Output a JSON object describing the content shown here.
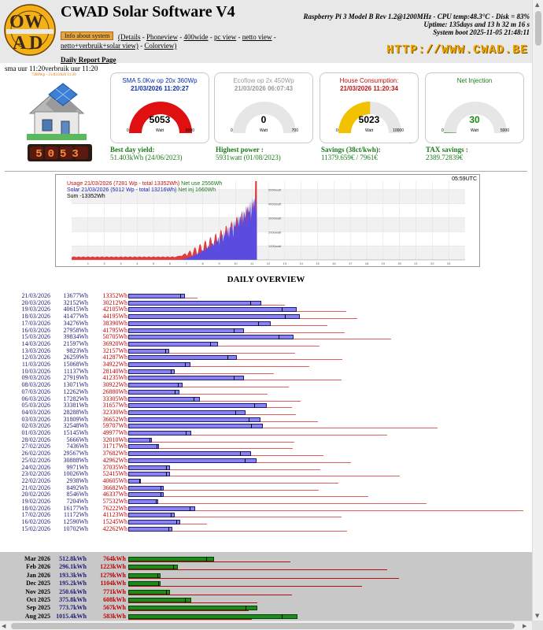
{
  "header": {
    "app_title": "CWAD Solar Software V4",
    "info_button": "Info about system",
    "links_row1": [
      "(Details",
      "Phoneview",
      "400wide",
      "pc view",
      "netto view",
      "-"
    ],
    "links_row2": [
      "netto+verbruik+solar view)",
      "Colorview)"
    ],
    "daily_report": "Daily Report Page",
    "system_lines": [
      "Raspberry Pi 3 Model B Rev 1.2@1200MHz - CPU temp:48.3°C - Disk = 83%",
      "Uptime: 135days and 13 h 32 m 16 s",
      "System boot 2025-11-05 21:48:11"
    ],
    "site_url": "HTTP://WWW.CWAD.BE",
    "sma_line": "sma uur 11:20verbruik uur 11:20",
    "house_caption": "7280Wp - 21/03/2026 11:20",
    "house_digits": "5053"
  },
  "gauges": [
    {
      "title": "SMA 5.0Kw op 20x 360Wp",
      "date": "21/03/2026 11:20:27",
      "value": "5053",
      "min": "0",
      "max": "5000",
      "unit": "Watt",
      "value_num": 5053,
      "max_num": 5000,
      "color": "#e01010",
      "title_color": "#0b2fb0",
      "date_color": "#0b2fb0",
      "value_color": "#000000"
    },
    {
      "title": "Ecoflow op 2x 450Wp",
      "date": "21/03/2026 06:07:43",
      "value": "0",
      "min": "0",
      "max": "700",
      "unit": "Watt",
      "value_num": 0,
      "max_num": 700,
      "color": "#999999",
      "title_color": "#9a9a9a",
      "date_color": "#9a9a9a",
      "value_color": "#000000"
    },
    {
      "title": "House Consumption:",
      "date": "21/03/2026 11:20:34",
      "value": "5023",
      "min": "0",
      "max": "10000",
      "unit": "Watt",
      "value_num": 5023,
      "max_num": 10000,
      "color": "#f2c200",
      "title_color": "#c01010",
      "date_color": "#c01010",
      "value_color": "#000000"
    },
    {
      "title": "Net Injection",
      "date": "",
      "value": "30",
      "min": "0",
      "max": "5000",
      "unit": "Watt",
      "value_num": 30,
      "max_num": 5000,
      "color": "#1e9e1e",
      "title_color": "#1a7a1a",
      "date_color": "#1a7a1a",
      "value_color": "#1a8a1a"
    }
  ],
  "stats": [
    {
      "label": "Best day yield:",
      "value": "51.403kWh (24/06/2023)"
    },
    {
      "label": "Highest power :",
      "value": "5931watt (01/08/2023)"
    },
    {
      "label": "Savings (38ct/kwh):",
      "value": "11379.659€ / 7961€"
    },
    {
      "label": "TAX savings :",
      "value": "2389.72839€"
    }
  ],
  "power_chart": {
    "time": "05:59UTC",
    "legend_usage": "Usage 21/03/2026 (7281 Wp - total 13352Wh)",
    "legend_netuse": "Net use 2556Wh",
    "legend_solar": "Solar 21/03/2026 (5012 Wp - total 13216Wh)",
    "legend_netinj": "Net inj 1660Wh",
    "legend_sum": "Sum -13352Wh",
    "y_labels": [
      "5000watt",
      "4000watt",
      "3000watt",
      "2000watt",
      "1000watt"
    ],
    "x_labels": [
      "1",
      "2",
      "3",
      "4",
      "5",
      "6",
      "7",
      "8",
      "9",
      "10",
      "11",
      "12",
      "13",
      "14",
      "15",
      "16",
      "17",
      "18",
      "19",
      "20",
      "21",
      "22",
      "23"
    ],
    "colors": {
      "usage": "#e23b3b",
      "solar": "#5b4ce0",
      "overlap": "#7a2eb0"
    }
  },
  "daily": {
    "title": "DAILY OVERVIEW",
    "max_wh": 79000,
    "rows": [
      {
        "date": "21/03/2026",
        "prod": "13677Wh",
        "use": "13352Wh"
      },
      {
        "date": "20/03/2026",
        "prod": "32152Wh",
        "use": "30212Wh"
      },
      {
        "date": "19/03/2026",
        "prod": "40615Wh",
        "use": "42105Wh"
      },
      {
        "date": "18/03/2026",
        "prod": "41477Wh",
        "use": "44195Wh"
      },
      {
        "date": "17/03/2026",
        "prod": "34276Wh",
        "use": "38390Wh"
      },
      {
        "date": "16/03/2026",
        "prod": "27958Wh",
        "use": "41795Wh"
      },
      {
        "date": "15/03/2026",
        "prod": "39834Wh",
        "use": "50705Wh"
      },
      {
        "date": "14/03/2026",
        "prod": "21597Wh",
        "use": "36920Wh"
      },
      {
        "date": "13/03/2026",
        "prod": "9823Wh",
        "use": "32157Wh"
      },
      {
        "date": "12/03/2026",
        "prod": "26259Wh",
        "use": "41287Wh"
      },
      {
        "date": "11/03/2026",
        "prod": "15068Wh",
        "use": "34922Wh"
      },
      {
        "date": "10/03/2026",
        "prod": "11137Wh",
        "use": "28140Wh"
      },
      {
        "date": "09/03/2026",
        "prod": "27919Wh",
        "use": "41235Wh"
      },
      {
        "date": "08/03/2026",
        "prod": "13071Wh",
        "use": "30922Wh"
      },
      {
        "date": "07/03/2026",
        "prod": "12262Wh",
        "use": "26880Wh"
      },
      {
        "date": "06/03/2026",
        "prod": "17282Wh",
        "use": "33305Wh"
      },
      {
        "date": "05/03/2026",
        "prod": "33381Wh",
        "use": "31657Wh"
      },
      {
        "date": "04/03/2026",
        "prod": "28288Wh",
        "use": "32330Wh"
      },
      {
        "date": "03/03/2026",
        "prod": "31809Wh",
        "use": "36652Wh"
      },
      {
        "date": "02/03/2026",
        "prod": "32548Wh",
        "use": "59707Wh"
      },
      {
        "date": "01/03/2026",
        "prod": "15145Wh",
        "use": "49977Wh"
      },
      {
        "date": "28/02/2026",
        "prod": "5666Wh",
        "use": "32010Wh"
      },
      {
        "date": "27/02/2026",
        "prod": "7436Wh",
        "use": "31717Wh"
      },
      {
        "date": "26/02/2026",
        "prod": "29567Wh",
        "use": "37682Wh"
      },
      {
        "date": "25/02/2026",
        "prod": "30888Wh",
        "use": "42962Wh"
      },
      {
        "date": "24/02/2026",
        "prod": "9971Wh",
        "use": "37035Wh"
      },
      {
        "date": "23/02/2026",
        "prod": "10026Wh",
        "use": "52415Wh"
      },
      {
        "date": "22/02/2026",
        "prod": "2938Wh",
        "use": "40605Wh"
      },
      {
        "date": "21/02/2026",
        "prod": "8492Wh",
        "use": "36682Wh"
      },
      {
        "date": "20/02/2026",
        "prod": "8546Wh",
        "use": "46337Wh"
      },
      {
        "date": "19/02/2026",
        "prod": "7204Wh",
        "use": "57532Wh"
      },
      {
        "date": "18/02/2026",
        "prod": "16177Wh",
        "use": "76222Wh"
      },
      {
        "date": "17/02/2026",
        "prod": "11172Wh",
        "use": "41123Wh"
      },
      {
        "date": "16/02/2026",
        "prod": "12590Wh",
        "use": "15245Wh"
      },
      {
        "date": "15/02/2026",
        "prod": "10702Wh",
        "use": "42262Wh"
      }
    ]
  },
  "monthly": {
    "max_kwh": 1300,
    "rows": [
      {
        "month": "Mar 2026",
        "prod": "512.8kWh",
        "use": "764kWh"
      },
      {
        "month": "Feb 2026",
        "prod": "296.1kWh",
        "use": "1223kWh"
      },
      {
        "month": "Jan 2026",
        "prod": "193.3kWh",
        "use": "1279kWh"
      },
      {
        "month": "Dec 2025",
        "prod": "195.2kWh",
        "use": "1104kWh"
      },
      {
        "month": "Nov 2025",
        "prod": "250.6kWh",
        "use": "771kWh"
      },
      {
        "month": "Oct 2025",
        "prod": "375.8kWh",
        "use": "608kWh"
      },
      {
        "month": "Sep 2025",
        "prod": "773.7kWh",
        "use": "567kWh"
      },
      {
        "month": "Aug 2025",
        "prod": "1015.4kWh",
        "use": "583kWh"
      }
    ]
  }
}
